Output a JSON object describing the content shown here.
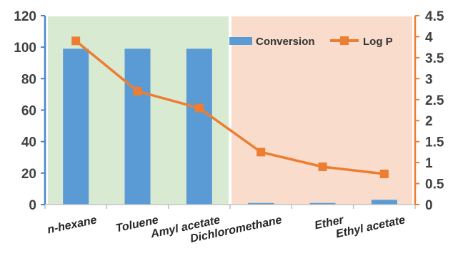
{
  "chart_data": {
    "type": "bar+line",
    "categories": [
      "n-hexane",
      "Toluene",
      "Amyl acetate",
      "Dichloromethane",
      "Ether",
      "Ethyl acetate"
    ],
    "series": [
      {
        "name": "Conversion",
        "type": "bar",
        "axis": "left",
        "values": [
          99,
          99,
          99,
          1,
          1,
          3
        ]
      },
      {
        "name": "Log P",
        "type": "line",
        "axis": "right",
        "values": [
          3.9,
          2.7,
          2.3,
          1.25,
          0.9,
          0.73
        ]
      }
    ],
    "y_left": {
      "min": 0,
      "max": 120,
      "ticks": [
        "0",
        "20",
        "40",
        "60",
        "80",
        "100",
        "120"
      ]
    },
    "y_right": {
      "min": 0,
      "max": 4.5,
      "ticks": [
        "0",
        "0.5",
        "1",
        "1.5",
        "2",
        "2.5",
        "3",
        "3.5",
        "4",
        "4.5"
      ]
    },
    "regions": [
      {
        "from": "n-hexane",
        "to": "Amyl acetate",
        "color": "#d9ead3"
      },
      {
        "from": "Dichloromethane",
        "to": "Ethyl acetate",
        "color": "#f9dccb"
      }
    ],
    "legend": "top-right",
    "colors": {
      "bar": "#5b9bd5",
      "line": "#ed7d31",
      "left_axis": "#4a86c5",
      "right_axis": "#ed7d31"
    },
    "title": "",
    "xlabel": "",
    "ylabel": ""
  }
}
